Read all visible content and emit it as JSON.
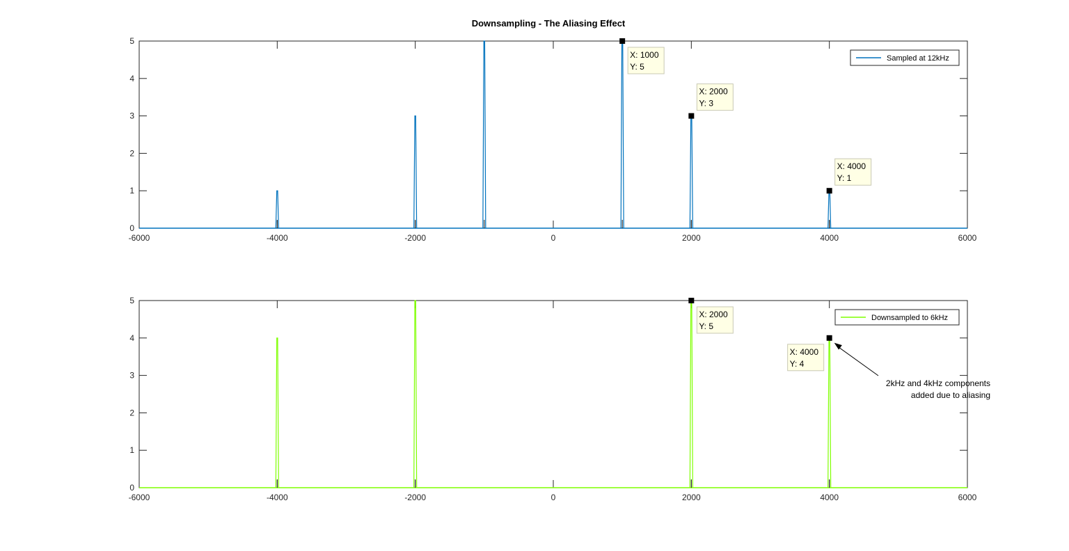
{
  "figure": {
    "title": "Downsampling - The Aliasing Effect"
  },
  "chart_data": [
    {
      "type": "line",
      "title": "Downsampling - The Aliasing Effect",
      "xlim": [
        -6000,
        6000
      ],
      "ylim": [
        0,
        5
      ],
      "xticks": [
        -6000,
        -4000,
        -2000,
        0,
        2000,
        4000,
        6000
      ],
      "yticks": [
        0,
        1,
        2,
        3,
        4,
        5
      ],
      "legend": {
        "entries": [
          "Sampled at 12kHz"
        ],
        "placement": "top-right"
      },
      "series": [
        {
          "name": "Sampled at 12kHz",
          "color": "#0072BD",
          "peaks": [
            {
              "x": -4000,
              "y": 1
            },
            {
              "x": -2000,
              "y": 3
            },
            {
              "x": -1000,
              "y": 5
            },
            {
              "x": 1000,
              "y": 5
            },
            {
              "x": 2000,
              "y": 3
            },
            {
              "x": 4000,
              "y": 1
            }
          ]
        }
      ],
      "datatips": [
        {
          "x": 1000,
          "y": 5,
          "x_label": "X: 1000",
          "y_label": "Y: 5",
          "side": "right",
          "offset": "below"
        },
        {
          "x": 2000,
          "y": 3,
          "x_label": "X: 2000",
          "y_label": "Y: 3",
          "side": "right",
          "offset": "above"
        },
        {
          "x": 4000,
          "y": 1,
          "x_label": "X: 4000",
          "y_label": "Y: 1",
          "side": "right",
          "offset": "above"
        }
      ],
      "annotations": []
    },
    {
      "type": "line",
      "title": "",
      "xlim": [
        -6000,
        6000
      ],
      "ylim": [
        0,
        5
      ],
      "xticks": [
        -6000,
        -4000,
        -2000,
        0,
        2000,
        4000,
        6000
      ],
      "yticks": [
        0,
        1,
        2,
        3,
        4,
        5
      ],
      "legend": {
        "entries": [
          "Downsampled to 6kHz"
        ],
        "placement": "top-right"
      },
      "series": [
        {
          "name": "Downsampled to 6kHz",
          "color": "#7FFF00",
          "peaks": [
            {
              "x": -4000,
              "y": 4
            },
            {
              "x": -2000,
              "y": 5
            },
            {
              "x": 2000,
              "y": 5
            },
            {
              "x": 4000,
              "y": 4
            }
          ]
        }
      ],
      "datatips": [
        {
          "x": 2000,
          "y": 5,
          "x_label": "X: 2000",
          "y_label": "Y: 5",
          "side": "right",
          "offset": "below"
        },
        {
          "x": 4000,
          "y": 4,
          "x_label": "X: 4000",
          "y_label": "Y: 4",
          "side": "left",
          "offset": "below"
        }
      ],
      "annotations": [
        {
          "lines": [
            "2kHz and 4kHz components",
            "added due to aliasing"
          ],
          "arrow_to": {
            "x": 4000,
            "y": 4
          }
        }
      ]
    }
  ]
}
